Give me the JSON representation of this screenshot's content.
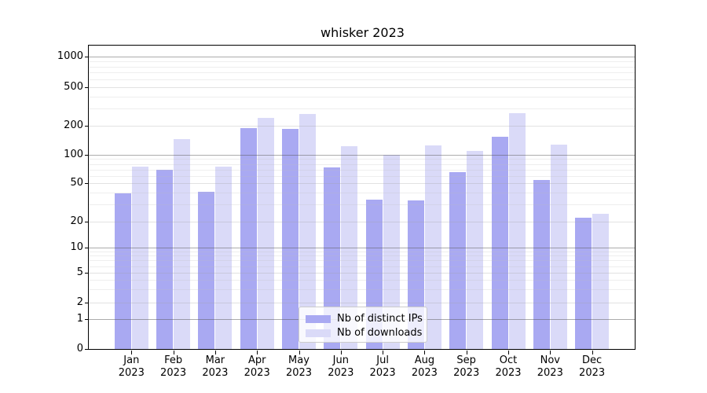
{
  "title": "whisker 2023",
  "y_axis": {
    "tick_values": [
      0,
      1,
      2,
      5,
      10,
      20,
      50,
      100,
      200,
      500,
      1000
    ],
    "tick_labels": [
      "0",
      "1",
      "2",
      "5",
      "10",
      "20",
      "50",
      "100",
      "200",
      "500",
      "1000"
    ]
  },
  "x_axis": {
    "months": [
      {
        "line1": "Jan",
        "line2": "2023"
      },
      {
        "line1": "Feb",
        "line2": "2023"
      },
      {
        "line1": "Mar",
        "line2": "2023"
      },
      {
        "line1": "Apr",
        "line2": "2023"
      },
      {
        "line1": "May",
        "line2": "2023"
      },
      {
        "line1": "Jun",
        "line2": "2023"
      },
      {
        "line1": "Jul",
        "line2": "2023"
      },
      {
        "line1": "Aug",
        "line2": "2023"
      },
      {
        "line1": "Sep",
        "line2": "2023"
      },
      {
        "line1": "Oct",
        "line2": "2023"
      },
      {
        "line1": "Nov",
        "line2": "2023"
      },
      {
        "line1": "Dec",
        "line2": "2023"
      }
    ]
  },
  "legend": {
    "items": [
      {
        "label": "Nb of distinct IPs",
        "color": "#a9a9f2"
      },
      {
        "label": "Nb of downloads",
        "color": "#dadaf8"
      }
    ]
  },
  "colors": {
    "bar_distinct_ips": "#a9a9f2",
    "bar_downloads": "#dadaf8",
    "grid_power10": "#b4b4b4",
    "grid_other": "#dedede",
    "spine": "#000000"
  },
  "chart_data": {
    "type": "bar",
    "title": "whisker 2023",
    "categories": [
      "Jan 2023",
      "Feb 2023",
      "Mar 2023",
      "Apr 2023",
      "May 2023",
      "Jun 2023",
      "Jul 2023",
      "Aug 2023",
      "Sep 2023",
      "Oct 2023",
      "Nov 2023",
      "Dec 2023"
    ],
    "series": [
      {
        "name": "Nb of distinct IPs",
        "values": [
          39,
          69,
          41,
          188,
          186,
          74,
          34,
          33,
          65,
          155,
          54,
          22
        ]
      },
      {
        "name": "Nb of downloads",
        "values": [
          75,
          145,
          75,
          242,
          263,
          123,
          100,
          125,
          110,
          270,
          128,
          24
        ]
      }
    ],
    "xlabel": "",
    "ylabel": "",
    "yscale": "symlog",
    "yticks": [
      0,
      1,
      2,
      5,
      10,
      20,
      50,
      100,
      200,
      500,
      1000
    ],
    "ylim": [
      0,
      1300
    ],
    "grid": true,
    "grid_emphasis": "powers of ten darker, drawn above bars",
    "legend_position": "lower center"
  }
}
